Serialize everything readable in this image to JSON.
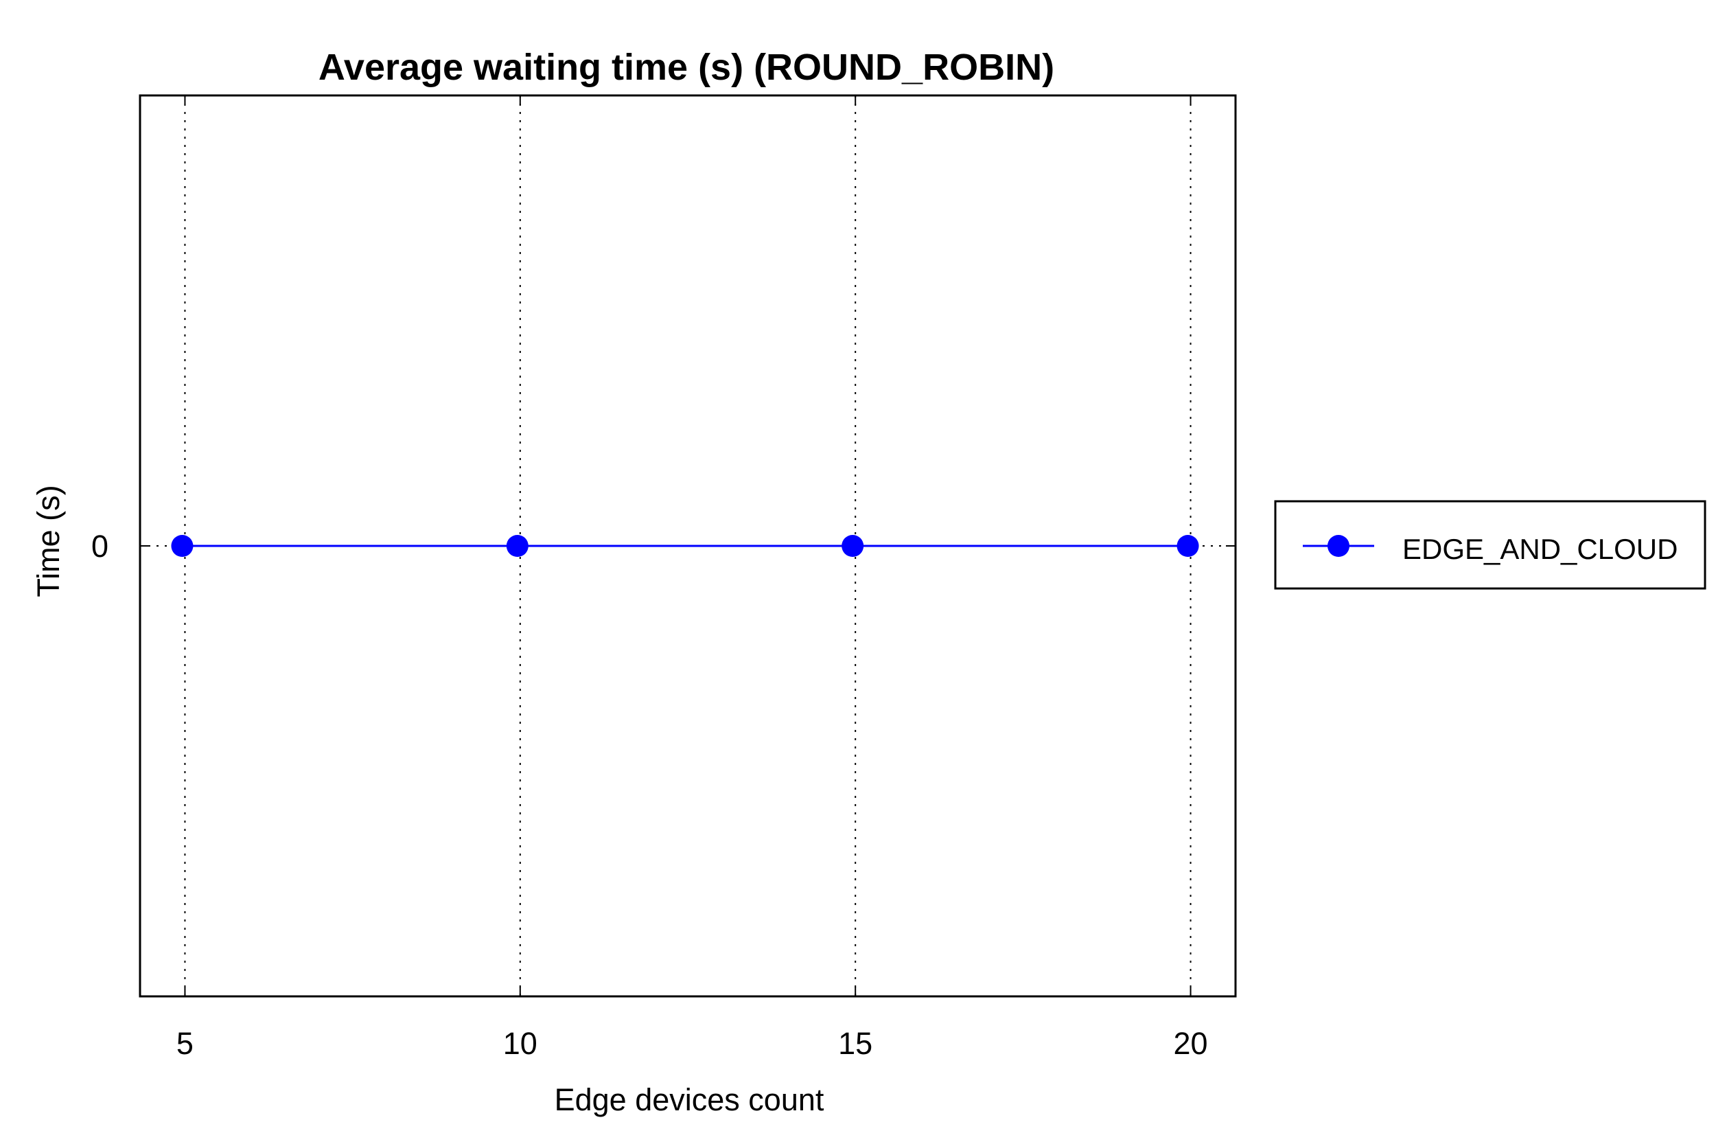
{
  "chart_data": {
    "type": "line",
    "title": "Average waiting time (s) (ROUND_ROBIN)",
    "xlabel": "Edge devices count",
    "ylabel": "Time (s)",
    "x": [
      5,
      10,
      15,
      20
    ],
    "x_ticks": [
      "5",
      "10",
      "15",
      "20"
    ],
    "y_ticks": [
      {
        "value": 0,
        "label": "0"
      }
    ],
    "xlim": [
      4.33,
      20.67
    ],
    "ylim": [
      -1,
      1
    ],
    "grid": "x-dotted",
    "legend_position": "right",
    "series": [
      {
        "name": "EDGE_AND_CLOUD",
        "color": "#0000ff",
        "marker": "circle",
        "values": [
          0,
          0,
          0,
          0
        ]
      }
    ]
  }
}
